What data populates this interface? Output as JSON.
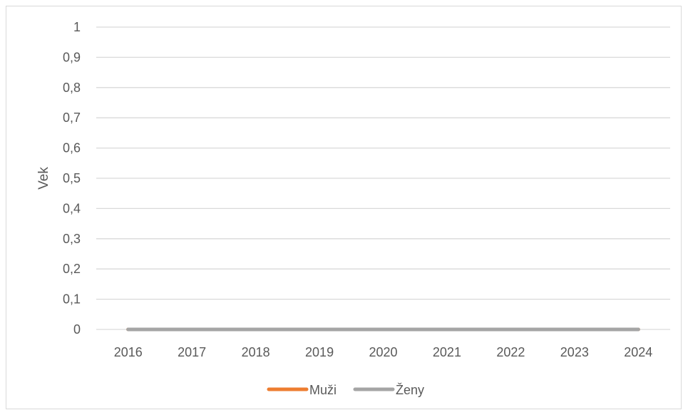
{
  "chart_data": {
    "type": "line",
    "title": "",
    "xlabel": "",
    "ylabel": "Vek",
    "x": [
      "2016",
      "2017",
      "2018",
      "2019",
      "2020",
      "2021",
      "2022",
      "2023",
      "2024"
    ],
    "ylim": [
      0,
      1
    ],
    "yticks": [
      "0",
      "0,1",
      "0,2",
      "0,3",
      "0,4",
      "0,5",
      "0,6",
      "0,7",
      "0,8",
      "0,9",
      "1"
    ],
    "grid": true,
    "legend_position": "bottom",
    "series": [
      {
        "name": "Muži",
        "color": "#ed7d31",
        "values": [
          0,
          0,
          0,
          0,
          0,
          0,
          0,
          0,
          0
        ]
      },
      {
        "name": "Ženy",
        "color": "#a5a5a5",
        "values": [
          0,
          0,
          0,
          0,
          0,
          0,
          0,
          0,
          0
        ]
      }
    ]
  }
}
